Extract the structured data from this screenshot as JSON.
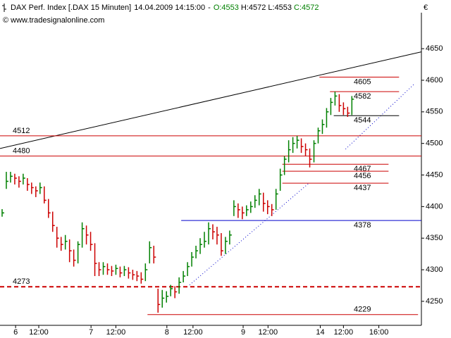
{
  "chart_data": {
    "type": "hlc",
    "header": {
      "symbol": "DAX Perf. Index [.DAX  15 Minuten]",
      "datetime": "14.04.2009 14:15:00",
      "separator": "-",
      "quote": [
        {
          "text": "O:4553",
          "color": "#008000"
        },
        {
          "text": "H:4572",
          "color": "#000000"
        },
        {
          "text": "L:4553",
          "color": "#000000"
        },
        {
          "text": "C:4572",
          "color": "#008000"
        }
      ]
    },
    "source": "© www.tradesignalonline.com",
    "currency": "€",
    "up_color": "#008000",
    "down_color": "#cc0000",
    "close": [
      4390,
      4440,
      4448,
      4445,
      4440,
      4445,
      4435,
      4430,
      4425,
      4430,
      4410,
      4390,
      4370,
      4350,
      4340,
      4345,
      4330,
      4315,
      4340,
      4365,
      4355,
      4340,
      4310,
      4300,
      4305,
      4300,
      4298,
      4302,
      4295,
      4300,
      4295,
      4292,
      4290,
      4285,
      4300,
      4335,
      4320,
      4245,
      4255,
      4258,
      4270,
      4265,
      4280,
      4290,
      4305,
      4320,
      4330,
      4340,
      4345,
      4365,
      4360,
      4355,
      4330,
      4345,
      4355,
      4400,
      4395,
      4390,
      4395,
      4400,
      4410,
      4420,
      4405,
      4400,
      4395,
      4420,
      4450,
      4475,
      4490,
      4500,
      4505,
      4495,
      4490,
      4475,
      4500,
      4520,
      4530,
      4550,
      4565,
      4575,
      4560,
      4555,
      4548,
      4570
    ],
    "high": [
      4396,
      4455,
      4455,
      4452,
      4448,
      4452,
      4445,
      4438,
      4432,
      4438,
      4432,
      4412,
      4392,
      4368,
      4352,
      4355,
      4348,
      4332,
      4345,
      4375,
      4370,
      4360,
      4342,
      4312,
      4312,
      4310,
      4306,
      4308,
      4305,
      4306,
      4304,
      4300,
      4298,
      4296,
      4310,
      4345,
      4338,
      4270,
      4268,
      4266,
      4276,
      4274,
      4288,
      4298,
      4312,
      4328,
      4338,
      4350,
      4360,
      4375,
      4372,
      4368,
      4358,
      4352,
      4362,
      4410,
      4405,
      4400,
      4402,
      4408,
      4418,
      4428,
      4422,
      4410,
      4404,
      4428,
      4460,
      4480,
      4505,
      4510,
      4512,
      4508,
      4500,
      4492,
      4505,
      4525,
      4538,
      4556,
      4572,
      4582,
      4578,
      4565,
      4558,
      4575
    ],
    "low": [
      4384,
      4428,
      4438,
      4435,
      4430,
      4435,
      4425,
      4420,
      4415,
      4420,
      4405,
      4382,
      4360,
      4335,
      4330,
      4332,
      4312,
      4305,
      4310,
      4335,
      4340,
      4330,
      4290,
      4290,
      4292,
      4292,
      4290,
      4292,
      4288,
      4290,
      4286,
      4284,
      4282,
      4278,
      4282,
      4310,
      4310,
      4232,
      4240,
      4248,
      4258,
      4255,
      4262,
      4280,
      4290,
      4305,
      4318,
      4325,
      4335,
      4340,
      4348,
      4340,
      4322,
      4325,
      4340,
      4385,
      4382,
      4380,
      4385,
      4390,
      4398,
      4402,
      4392,
      4388,
      4385,
      4395,
      4425,
      4450,
      4470,
      4485,
      4492,
      4485,
      4480,
      4462,
      4470,
      4500,
      4515,
      4525,
      4545,
      4560,
      4550,
      4545,
      4542,
      4545
    ],
    "xlim": [
      -0.5,
      99.5
    ],
    "ylim": [
      4212,
      4707
    ],
    "yticks": [
      4250,
      4300,
      4350,
      4400,
      4450,
      4500,
      4550,
      4600,
      4650
    ],
    "xticks": [
      {
        "value": 3.2,
        "label": "6"
      },
      {
        "value": 8.7,
        "label": "12:00"
      },
      {
        "value": 21.1,
        "label": "7"
      },
      {
        "value": 27,
        "label": "12:00"
      },
      {
        "value": 39.1,
        "label": "8"
      },
      {
        "value": 45.3,
        "label": "12:00"
      },
      {
        "value": 57.2,
        "label": "9"
      },
      {
        "value": 63.1,
        "label": "12:00"
      },
      {
        "value": 75.5,
        "label": "14"
      },
      {
        "value": 81,
        "label": "12:00"
      },
      {
        "value": 89.4,
        "label": "16:00"
      }
    ],
    "levels": [
      {
        "value": 4605,
        "x": [
          75.3,
          94.2
        ],
        "color": "#cc0000",
        "style": "solid"
      },
      {
        "value": 4582,
        "x": [
          77.8,
          94.2
        ],
        "color": "#cc0000",
        "style": "solid"
      },
      {
        "value": 4544,
        "x": [
          78.7,
          94.2
        ],
        "color": "#000000",
        "style": "solid"
      },
      {
        "value": 4512,
        "x": [
          -0.5,
          99.5
        ],
        "color": "#cc0000",
        "style": "solid"
      },
      {
        "value": 4480,
        "x": [
          -0.5,
          99.5
        ],
        "color": "#cc0000",
        "style": "solid"
      },
      {
        "value": 4467,
        "x": [
          66.5,
          91.7
        ],
        "color": "#cc0000",
        "style": "solid"
      },
      {
        "value": 4456,
        "x": [
          66.5,
          91.7
        ],
        "color": "#cc0000",
        "style": "solid"
      },
      {
        "value": 4437,
        "x": [
          66.5,
          91.7
        ],
        "color": "#cc0000",
        "style": "solid"
      },
      {
        "value": 4378,
        "x": [
          42.5,
          99.5
        ],
        "color": "#0000cc",
        "style": "solid"
      },
      {
        "value": 4273,
        "x": [
          -0.5,
          99.5
        ],
        "color": "#cc0000",
        "style": "dashed"
      },
      {
        "value": 4229,
        "x": [
          34.5,
          98.7
        ],
        "color": "#cc0000",
        "style": "solid"
      }
    ],
    "trendlines": [
      {
        "x": [
          -0.5,
          99.5
        ],
        "y": [
          4492,
          4645
        ],
        "color": "#000000",
        "style": "solid"
      },
      {
        "x": [
          44.5,
          72.8
        ],
        "y": [
          4276,
          4437
        ],
        "color": "#0000cc",
        "style": "dotted"
      },
      {
        "x": [
          81.5,
          97.8
        ],
        "y": [
          4491,
          4594
        ],
        "color": "#0000cc",
        "style": "dotted"
      }
    ]
  }
}
